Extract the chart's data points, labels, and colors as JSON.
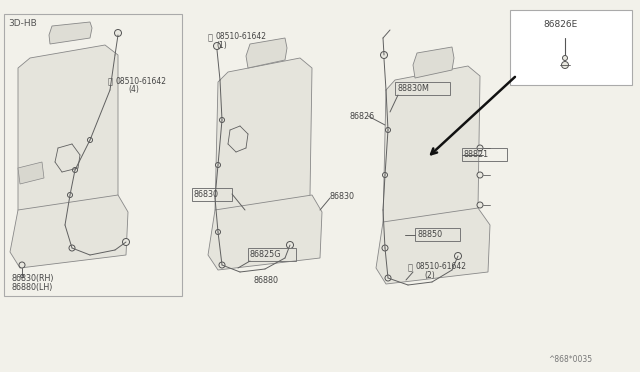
{
  "bg_color": "#f2f1ea",
  "line_color": "#555555",
  "text_color": "#444444",
  "diagram_ref": "^868*0035",
  "labels": {
    "3dhb": "3D-HB",
    "l1": "08510-61642",
    "l1s": "(4)",
    "l2": "08510-61642",
    "l2s": "(1)",
    "l3": "86830",
    "l4": "86825G",
    "l5": "86880",
    "l6": "86826",
    "l7": "88830M",
    "l8": "88821",
    "l9": "88850",
    "l10": "08510-61642",
    "l10s": "(2)",
    "l11": "86826E",
    "l12": "86830(RH)",
    "l13": "86880(LH)"
  }
}
